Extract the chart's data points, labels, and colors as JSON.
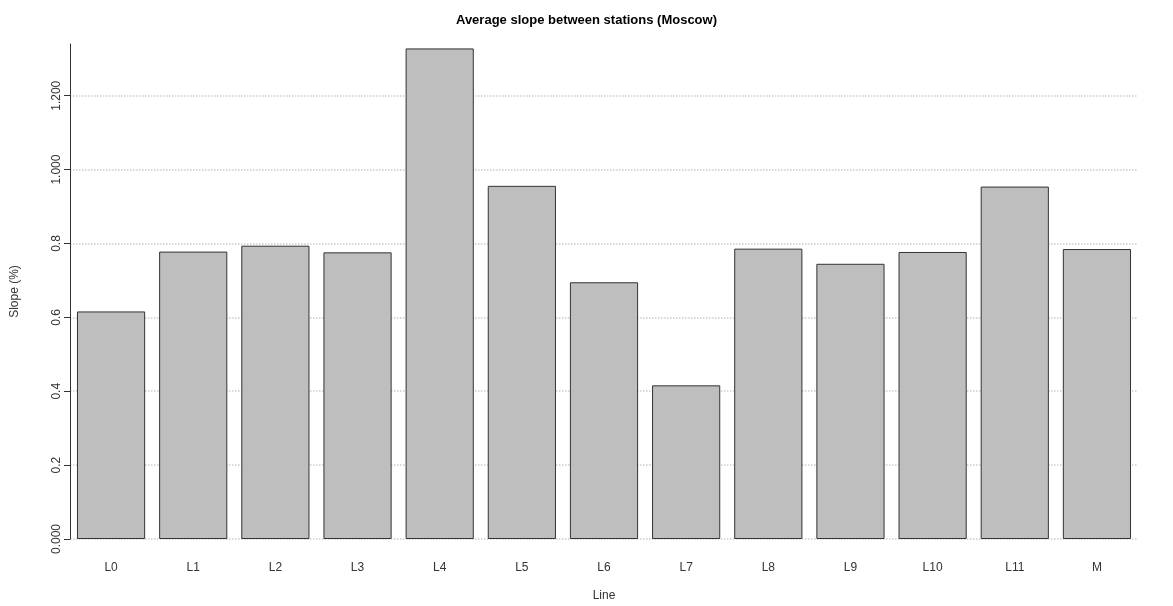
{
  "chart_data": {
    "type": "bar",
    "title": "Average slope between stations (Moscow)",
    "xlabel": "Line",
    "ylabel": "Slope (%)",
    "categories": [
      "L0",
      "L1",
      "L2",
      "L3",
      "L4",
      "L5",
      "L6",
      "L7",
      "L8",
      "L9",
      "L10",
      "L11",
      "M"
    ],
    "values": [
      0.616,
      0.778,
      0.794,
      0.776,
      1.328,
      0.956,
      0.695,
      0.416,
      0.786,
      0.745,
      0.777,
      0.954,
      0.785
    ],
    "color": "#bebebe",
    "ylim": [
      0,
      1.34
    ],
    "yticks": [
      {
        "value": 0,
        "label": "0.000"
      },
      0.2,
      0.4,
      0.6,
      0.8,
      {
        "value": 1,
        "label": "1.000"
      },
      {
        "value": 1.2,
        "label": "1.200"
      }
    ],
    "grid": "y"
  }
}
